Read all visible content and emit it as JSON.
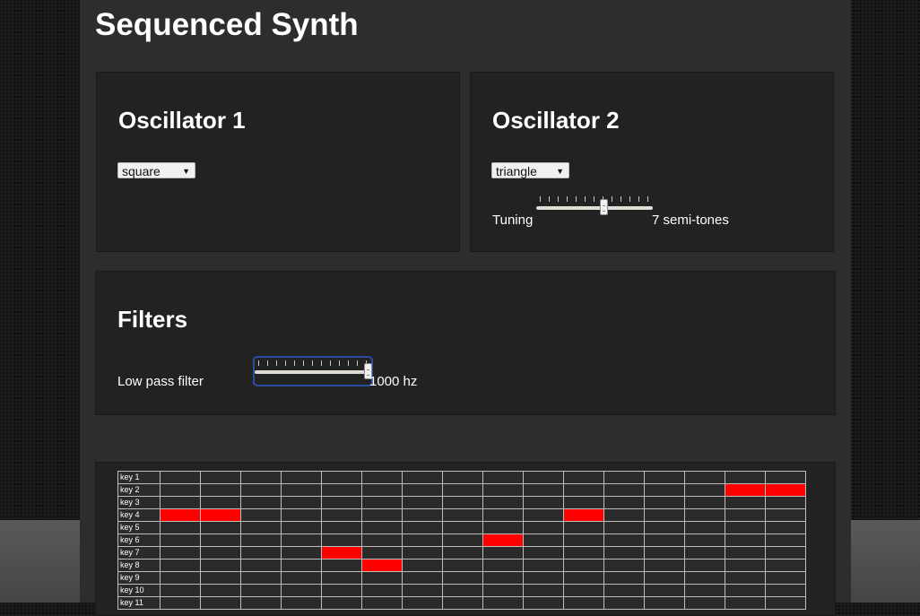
{
  "app": {
    "title": "Sequenced Synth"
  },
  "oscillator1": {
    "heading": "Oscillator 1",
    "waveform": "square"
  },
  "oscillator2": {
    "heading": "Oscillator 2",
    "waveform": "triangle",
    "tuning_label": "Tuning",
    "tuning_value": 7,
    "tuning_display": "7 semi-tones",
    "tuning_fraction": 0.58
  },
  "filters": {
    "heading": "Filters",
    "lowpass_label": "Low pass filter",
    "lowpass_display": "1000 hz",
    "lowpass_fraction": 0.97
  },
  "sequencer": {
    "steps": 16,
    "rows": [
      {
        "label": "key 1",
        "active": []
      },
      {
        "label": "key 2",
        "active": [
          14,
          15
        ]
      },
      {
        "label": "key 3",
        "active": []
      },
      {
        "label": "key 4",
        "active": [
          0,
          1,
          10
        ]
      },
      {
        "label": "key 5",
        "active": []
      },
      {
        "label": "key 6",
        "active": [
          8
        ]
      },
      {
        "label": "key 7",
        "active": [
          4
        ]
      },
      {
        "label": "key 8",
        "active": [
          5
        ]
      },
      {
        "label": "key 9",
        "active": []
      },
      {
        "label": "key 10",
        "active": []
      },
      {
        "label": "key 11",
        "active": []
      }
    ]
  },
  "colors": {
    "active_step": "#ff0000",
    "grid_line": "#bdbdbd"
  }
}
